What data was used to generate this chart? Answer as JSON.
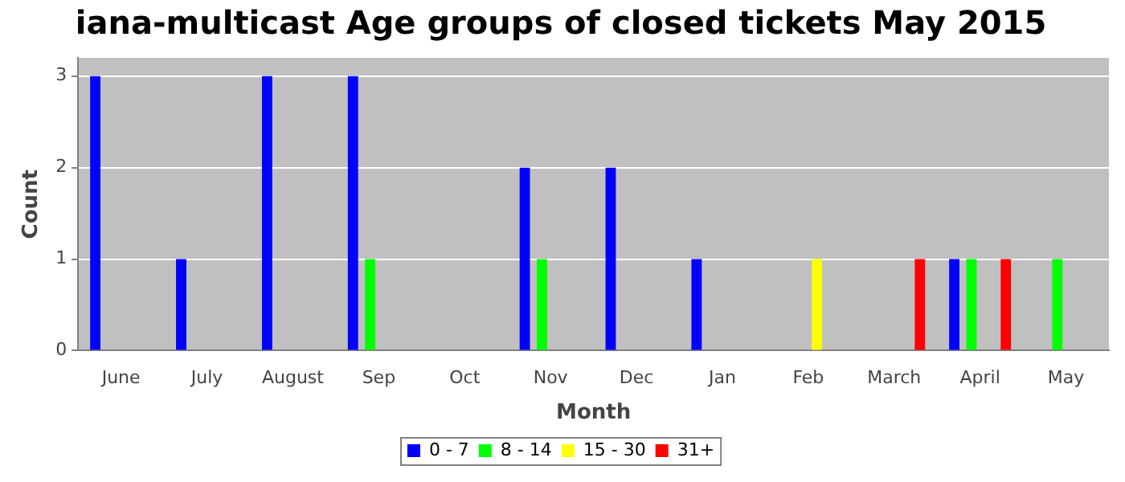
{
  "chart_data": {
    "type": "bar",
    "title": "iana-multicast Age groups of closed tickets May 2015",
    "xlabel": "Month",
    "ylabel": "Count",
    "categories": [
      "June",
      "July",
      "August",
      "Sep",
      "Oct",
      "Nov",
      "Dec",
      "Jan",
      "Feb",
      "March",
      "April",
      "May"
    ],
    "series": [
      {
        "name": "0 - 7",
        "color": "#0000ff",
        "values": [
          3,
          1,
          3,
          3,
          0,
          2,
          2,
          1,
          0,
          0,
          1,
          0
        ]
      },
      {
        "name": "8 - 14",
        "color": "#00ff00",
        "values": [
          0,
          0,
          0,
          1,
          0,
          1,
          0,
          0,
          0,
          0,
          1,
          1
        ]
      },
      {
        "name": "15 - 30",
        "color": "#ffff00",
        "values": [
          0,
          0,
          0,
          0,
          0,
          0,
          0,
          0,
          1,
          0,
          0,
          0
        ]
      },
      {
        "name": "31+",
        "color": "#ff0000",
        "values": [
          0,
          0,
          0,
          0,
          0,
          0,
          0,
          0,
          0,
          1,
          1,
          0
        ]
      }
    ],
    "ylim": [
      0,
      3.2
    ],
    "yticks": [
      0,
      1,
      2,
      3
    ],
    "grid": "y",
    "legend": "bottom"
  }
}
